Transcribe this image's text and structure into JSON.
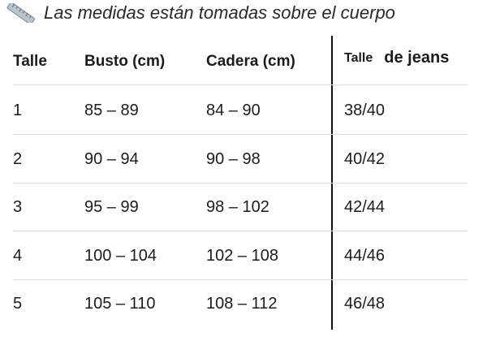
{
  "note": {
    "icon": "ruler-icon",
    "text": "Las medidas están tomadas sobre el cuerpo"
  },
  "table": {
    "headers": {
      "talle": "Talle",
      "busto": "Busto (cm)",
      "cadera": "Cadera (cm)",
      "jeans_a": "Talle",
      "jeans_b": "de jeans"
    },
    "rows": [
      {
        "talle": "1",
        "busto": "85 – 89",
        "cadera": "84 – 90",
        "jeans": "38/40"
      },
      {
        "talle": "2",
        "busto": "90 – 94",
        "cadera": "90 – 98",
        "jeans": "40/42"
      },
      {
        "talle": "3",
        "busto": "95 – 99",
        "cadera": "98 – 102",
        "jeans": "42/44"
      },
      {
        "talle": "4",
        "busto": "100 – 104",
        "cadera": "102 – 108",
        "jeans": "44/46"
      },
      {
        "talle": "5",
        "busto": "105 – 110",
        "cadera": "108 – 112",
        "jeans": "46/48"
      }
    ]
  }
}
